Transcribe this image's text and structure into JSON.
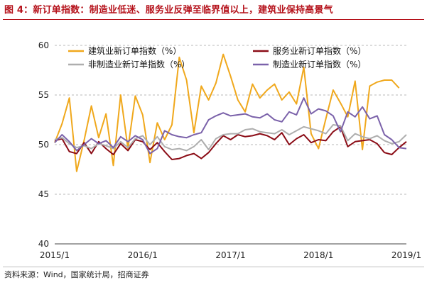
{
  "title": "图 4：新订单指数：制造业低迷、服务业反弹至临界值以上，建筑业保持高景气",
  "source": "资料来源：Wind，国家统计局，招商证券",
  "chart_data": {
    "type": "line",
    "ylim": [
      40,
      60
    ],
    "yticks": [
      40,
      45,
      50,
      55,
      60
    ],
    "xtick_labels": [
      {
        "label": "2015/1",
        "index": 0
      },
      {
        "label": "2016/1",
        "index": 12
      },
      {
        "label": "2017/1",
        "index": 24
      },
      {
        "label": "2018/1",
        "index": 36
      },
      {
        "label": "2019/1",
        "index": 48
      }
    ],
    "grid": "horizontal dashed",
    "legend_position": "top",
    "series": [
      {
        "name": "建筑业新订单指数（%）",
        "color": "#f0a81c",
        "values": [
          50.2,
          52.1,
          54.7,
          47.3,
          50.4,
          53.9,
          50.7,
          53.1,
          47.9,
          55.0,
          49.6,
          54.9,
          53.0,
          48.2,
          52.2,
          50.5,
          52.0,
          58.8,
          56.5,
          51.2,
          55.9,
          54.5,
          56.2,
          59.1,
          56.9,
          54.5,
          53.3,
          56.1,
          54.7,
          55.5,
          56.1,
          54.5,
          55.3,
          54.1,
          57.8,
          51.1,
          49.6,
          52.6,
          55.5,
          54.2,
          52.8,
          56.4,
          49.5,
          55.9,
          56.3,
          56.5,
          56.5,
          55.7
        ]
      },
      {
        "name": "服务业新订单指数（%）",
        "color": "#8b0c16",
        "values": [
          50.4,
          50.6,
          49.3,
          49.1,
          50.2,
          49.1,
          50.3,
          49.6,
          49.0,
          50.1,
          49.4,
          50.5,
          50.3,
          49.5,
          50.2,
          49.3,
          48.5,
          48.6,
          48.9,
          49.1,
          48.6,
          49.2,
          50.1,
          50.9,
          50.5,
          51.0,
          50.8,
          50.9,
          51.1,
          50.9,
          50.5,
          51.2,
          50.0,
          50.6,
          51.0,
          50.2,
          50.5,
          50.4,
          51.3,
          51.8,
          49.8,
          50.3,
          50.4,
          50.5,
          50.1,
          49.2,
          49.0,
          49.7,
          50.3
        ]
      },
      {
        "name": "非制造业新订单指数（%）",
        "color": "#aeaeae",
        "values": [
          50.5,
          50.7,
          50.1,
          49.7,
          49.9,
          49.6,
          50.1,
          49.9,
          49.6,
          50.3,
          49.7,
          50.6,
          50.9,
          50.0,
          50.8,
          49.8,
          49.5,
          49.6,
          49.4,
          49.8,
          50.5,
          49.5,
          50.6,
          51.0,
          51.1,
          51.1,
          51.5,
          51.6,
          51.3,
          51.2,
          51.1,
          51.5,
          51.0,
          51.4,
          51.8,
          51.6,
          51.4,
          51.1,
          52.0,
          51.9,
          50.4,
          51.1,
          50.8,
          50.6,
          50.9,
          50.4,
          50.1,
          50.3,
          51.0
        ]
      },
      {
        "name": "制造业新订单指数（%）",
        "color": "#7b62aa",
        "values": [
          50.2,
          51.0,
          50.3,
          49.4,
          50.0,
          50.6,
          50.1,
          50.4,
          49.7,
          50.8,
          50.3,
          50.9,
          50.5,
          49.1,
          49.6,
          51.4,
          51.0,
          50.8,
          50.7,
          51.0,
          51.2,
          52.5,
          52.9,
          53.2,
          52.9,
          53.0,
          53.1,
          52.8,
          52.7,
          53.1,
          52.5,
          52.3,
          53.3,
          53.0,
          54.7,
          53.1,
          53.6,
          53.4,
          52.9,
          51.3,
          53.3,
          52.8,
          53.8,
          52.6,
          52.9,
          51.0,
          50.5,
          49.7,
          49.6
        ]
      }
    ]
  }
}
